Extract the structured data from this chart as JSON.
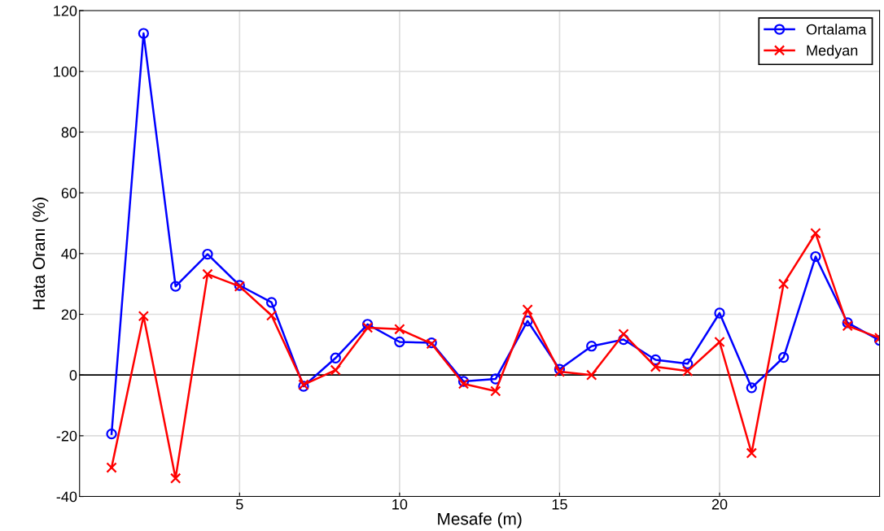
{
  "chart_data": {
    "type": "line",
    "xlabel": "Mesafe (m)",
    "ylabel": "Hata Oranı (%)",
    "x": [
      1,
      2,
      3,
      4,
      5,
      6,
      7,
      8,
      9,
      10,
      11,
      12,
      13,
      14,
      15,
      16,
      17,
      18,
      19,
      20,
      21,
      22,
      23,
      24,
      25
    ],
    "series": [
      {
        "name": "Ortalama",
        "color": "#0000ff",
        "marker": "circle",
        "values": [
          -19.4,
          112.5,
          29.2,
          39.8,
          29.5,
          23.9,
          -3.7,
          5.6,
          16.7,
          10.9,
          10.6,
          -2.1,
          -1.3,
          17.8,
          1.9,
          9.5,
          11.7,
          5.0,
          3.7,
          20.4,
          -4.2,
          5.8,
          39.0,
          17.2,
          11.4
        ]
      },
      {
        "name": "Medyan",
        "color": "#ff0000",
        "marker": "cross",
        "values": [
          -30.5,
          19.4,
          -34,
          33.2,
          29.2,
          19.6,
          -3.2,
          1.6,
          15.6,
          15.1,
          10.3,
          -2.9,
          -5.3,
          21.5,
          1.1,
          0,
          13.5,
          2.7,
          1.3,
          10.9,
          -25.7,
          30,
          46.7,
          16.2,
          12.2
        ]
      }
    ],
    "xlim": [
      0,
      25
    ],
    "xticks": [
      5,
      10,
      15,
      20
    ],
    "ylim": [
      -40,
      120
    ],
    "yticks": [
      -40,
      -20,
      0,
      20,
      40,
      60,
      80,
      100,
      120
    ],
    "ref_lines": [
      {
        "axis": "y",
        "value": 0,
        "color": "#000000"
      }
    ],
    "grid": true,
    "legend": "top right",
    "line_style": "solid"
  }
}
